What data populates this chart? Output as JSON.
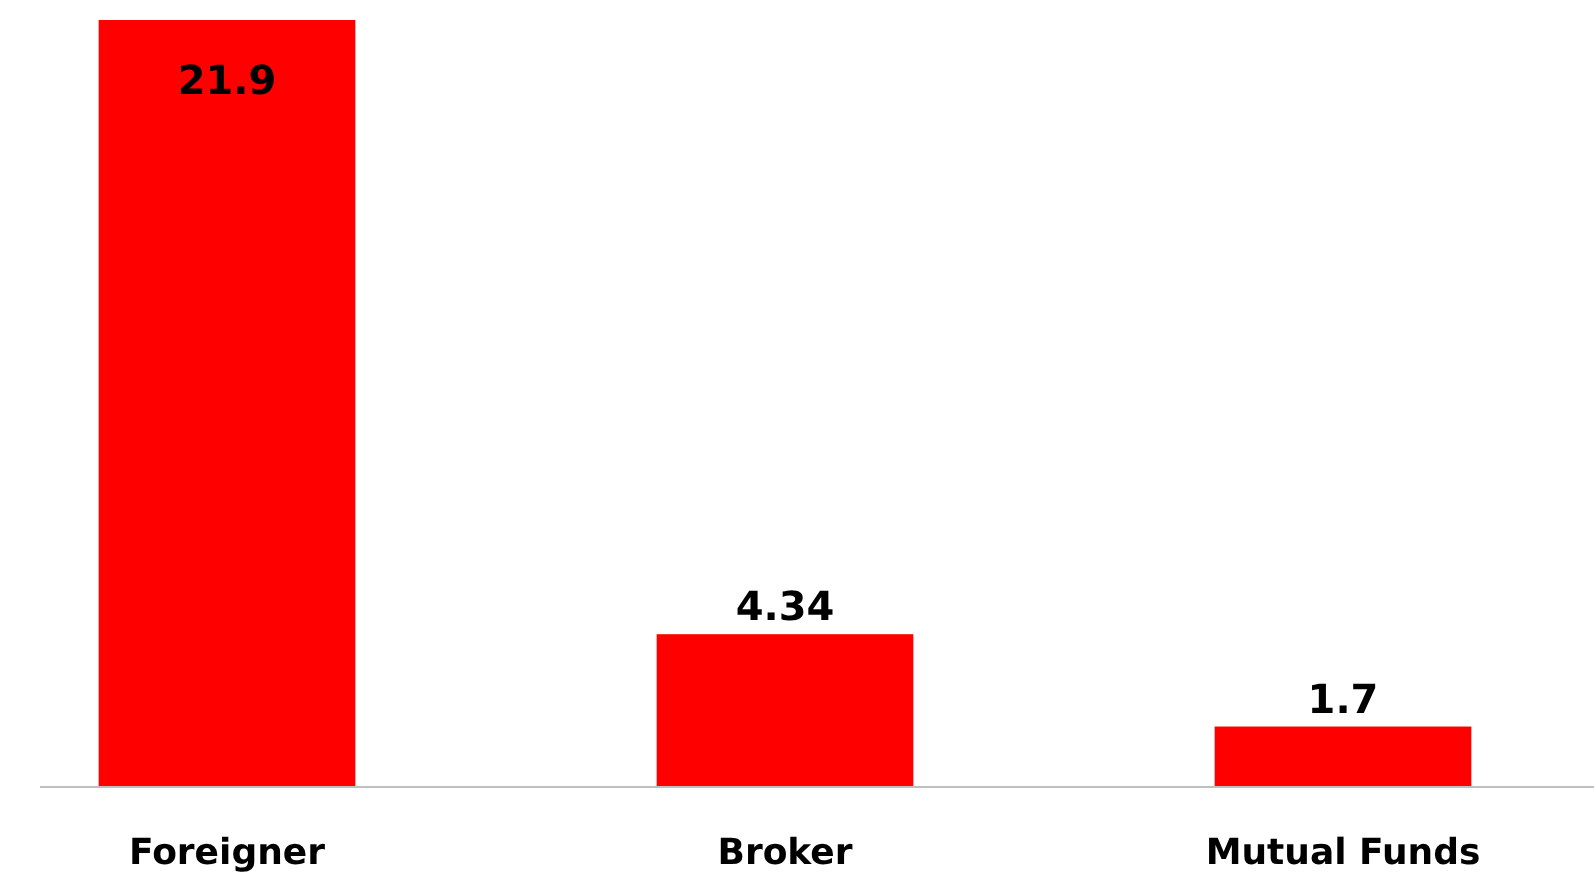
{
  "chart_data": {
    "type": "bar",
    "categories": [
      "Foreigner",
      "Broker",
      "Mutual Funds"
    ],
    "values": [
      21.9,
      4.34,
      1.7
    ],
    "color": "#ff0000",
    "data_labels": true
  }
}
